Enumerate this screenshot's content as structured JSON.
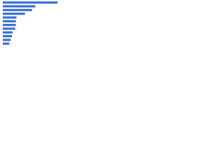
{
  "chart_data": {
    "type": "bar",
    "orientation": "horizontal",
    "categories": [
      null,
      null,
      null,
      null,
      null,
      null,
      null,
      null,
      null,
      null,
      null,
      null
    ],
    "values": [
      84,
      50,
      45,
      34,
      21,
      20,
      20,
      19,
      15,
      14,
      12,
      10
    ],
    "color": "#3a6fd8",
    "xlim": [
      0,
      100
    ]
  }
}
